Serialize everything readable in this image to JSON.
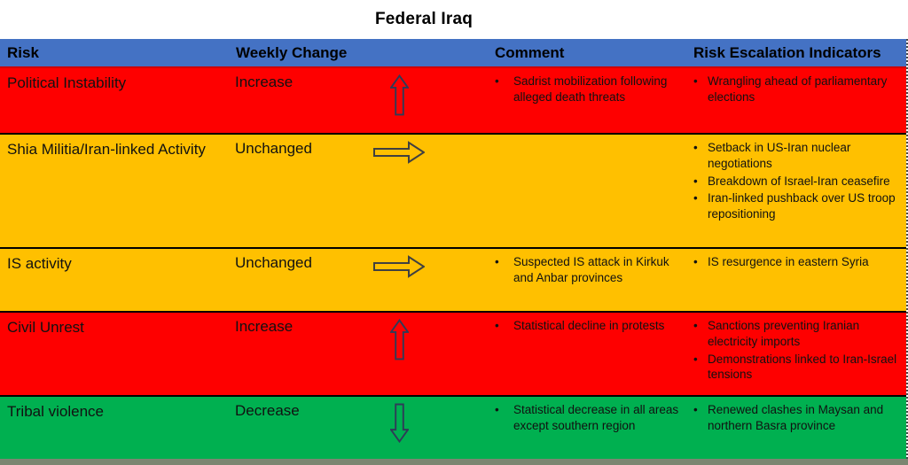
{
  "title": "Federal Iraq",
  "colors": {
    "header_blue": "#4472C4",
    "red": "#FE0000",
    "amber": "#FFC000",
    "green": "#00B050",
    "arrow_navy": "#2F3B57",
    "arrow_dark": "#404040",
    "header_divider_red": "#D00000",
    "bottom_strip_gray": "#7B8671"
  },
  "table": {
    "headers": {
      "risk": "Risk",
      "weekly_change": "Weekly Change",
      "comment": "Comment",
      "indicators": "Risk Escalation Indicators"
    },
    "rows": [
      {
        "risk": "Political Instability",
        "weekly_change": "Increase",
        "arrow": "up-arrow",
        "severity": "red",
        "comments": [
          "Sadrist mobilization following alleged death threats"
        ],
        "indicators": [
          "Wrangling ahead of parliamentary elections"
        ]
      },
      {
        "risk": "Shia Militia/Iran-linked Activity",
        "weekly_change": "Unchanged",
        "arrow": "right-arrow",
        "severity": "amber",
        "comments": [],
        "indicators": [
          "Setback in US-Iran nuclear negotiations",
          "Breakdown of Israel-Iran ceasefire",
          "Iran-linked pushback over US troop repositioning"
        ]
      },
      {
        "risk": "IS activity",
        "weekly_change": "Unchanged",
        "arrow": "right-arrow",
        "severity": "amber",
        "comments": [
          "Suspected IS attack in Kirkuk and Anbar provinces"
        ],
        "indicators": [
          "IS resurgence in eastern Syria"
        ]
      },
      {
        "risk": "Civil Unrest",
        "weekly_change": "Increase",
        "arrow": "up-arrow",
        "severity": "red",
        "comments": [
          "Statistical decline in protests"
        ],
        "indicators": [
          "Sanctions preventing Iranian electricity imports",
          "Demonstrations linked to Iran-Israel tensions"
        ]
      },
      {
        "risk": "Tribal violence",
        "weekly_change": "Decrease",
        "arrow": "down-arrow",
        "severity": "green",
        "comments": [
          "Statistical decrease in all areas except southern region"
        ],
        "indicators": [
          "Renewed clashes in Maysan and northern Basra province"
        ]
      }
    ]
  }
}
